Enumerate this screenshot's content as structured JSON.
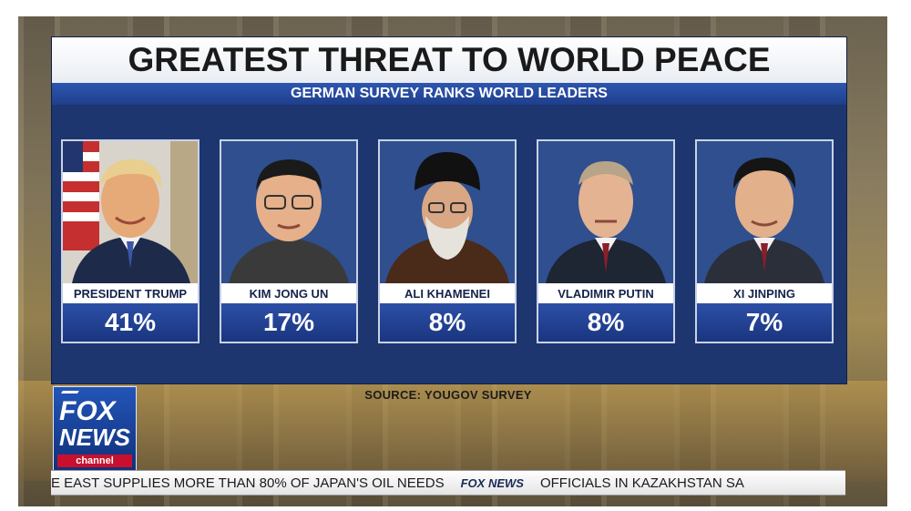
{
  "graphic": {
    "title": "GREATEST THREAT TO WORLD PEACE",
    "subtitle": "GERMAN SURVEY RANKS WORLD LEADERS",
    "source": "SOURCE: YOUGOV SURVEY"
  },
  "leaders": [
    {
      "name": "PRESIDENT TRUMP",
      "value": "41%"
    },
    {
      "name": "KIM JONG UN",
      "value": "17%"
    },
    {
      "name": "ALI KHAMENEI",
      "value": "8%"
    },
    {
      "name": "VLADIMIR PUTIN",
      "value": "8%"
    },
    {
      "name": "XI JINPING",
      "value": "7%"
    }
  ],
  "logo": {
    "line1": "FOX",
    "line2": "NEWS",
    "line3": "channel"
  },
  "ticker": {
    "left_text": "E EAST SUPPLIES MORE THAN 80% OF JAPAN'S OIL NEEDS",
    "logo_text": "FOX NEWS",
    "right_text": "OFFICIALS IN KAZAKHSTAN SA"
  },
  "colors": {
    "panel_blue": "#1d3670",
    "bar_blue": "#2c4fa6",
    "channel_red": "#c8102e"
  }
}
